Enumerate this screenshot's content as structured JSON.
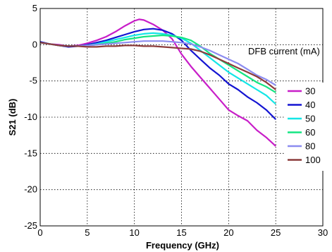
{
  "chart_data": {
    "type": "line",
    "title": "",
    "xlabel": "Frequency (GHz)",
    "ylabel": "S21 (dB)",
    "xlim": [
      0,
      30
    ],
    "ylim": [
      -25,
      5
    ],
    "xticks": [
      0,
      5,
      10,
      15,
      20,
      25,
      30
    ],
    "yticks": [
      -25,
      -20,
      -15,
      -10,
      -5,
      0,
      5
    ],
    "grid": true,
    "legend_title": "DFB current (mA)",
    "legend_position": "right",
    "series": [
      {
        "name": "30",
        "color": "#c81ec8",
        "x": [
          0,
          1,
          2,
          3,
          4,
          5,
          6,
          7,
          8,
          9,
          10,
          10.5,
          11,
          12,
          13,
          14,
          15,
          16,
          17,
          18,
          19,
          20,
          21,
          22,
          23,
          24,
          25
        ],
        "y": [
          0.3,
          0.1,
          0,
          -0.2,
          -0.1,
          0.2,
          0.6,
          1.1,
          1.8,
          2.6,
          3.3,
          3.5,
          3.4,
          2.8,
          2.0,
          0.8,
          -1.3,
          -3.0,
          -4.5,
          -6.0,
          -7.5,
          -9.0,
          -9.8,
          -10.5,
          -11.8,
          -12.8,
          -14.0
        ]
      },
      {
        "name": "40",
        "color": "#1414d2",
        "x": [
          0,
          1,
          2,
          3,
          4,
          5,
          6,
          7,
          8,
          9,
          10,
          11,
          12,
          13,
          14,
          15,
          16,
          17,
          18,
          19,
          20,
          21,
          22,
          23,
          24,
          25
        ],
        "y": [
          0.4,
          0.1,
          -0.1,
          -0.3,
          -0.2,
          0.0,
          0.3,
          0.6,
          1.0,
          1.4,
          1.8,
          2.1,
          2.2,
          2.0,
          1.5,
          0.6,
          -0.8,
          -2.0,
          -3.2,
          -4.2,
          -5.4,
          -6.2,
          -7.2,
          -8.0,
          -9.0,
          -10.3
        ]
      },
      {
        "name": "50",
        "color": "#14e6e6",
        "x": [
          0,
          1,
          2,
          3,
          4,
          5,
          6,
          7,
          8,
          9,
          10,
          11,
          12,
          13,
          14,
          15,
          16,
          17,
          18,
          19,
          20,
          21,
          22,
          23,
          24,
          25
        ],
        "y": [
          0.3,
          0.1,
          -0.1,
          -0.2,
          -0.2,
          -0.1,
          0.1,
          0.4,
          0.7,
          1.0,
          1.3,
          1.5,
          1.6,
          1.5,
          1.3,
          0.9,
          0.2,
          -0.8,
          -1.8,
          -2.8,
          -3.8,
          -4.6,
          -5.4,
          -6.2,
          -7.0,
          -8.2
        ]
      },
      {
        "name": "60",
        "color": "#14e682",
        "x": [
          0,
          1,
          2,
          3,
          4,
          5,
          6,
          7,
          8,
          9,
          10,
          11,
          12,
          13,
          14,
          15,
          16,
          17,
          18,
          19,
          20,
          21,
          22,
          23,
          24,
          25
        ],
        "y": [
          0.3,
          0.1,
          -0.1,
          -0.2,
          -0.2,
          -0.1,
          0.0,
          0.2,
          0.4,
          0.7,
          0.9,
          1.1,
          1.2,
          1.3,
          1.2,
          1.0,
          0.6,
          -0.2,
          -1.2,
          -2.0,
          -2.8,
          -3.6,
          -4.4,
          -5.2,
          -5.8,
          -6.6
        ]
      },
      {
        "name": "80",
        "color": "#8c8cf0",
        "x": [
          0,
          1,
          2,
          3,
          4,
          5,
          6,
          7,
          8,
          9,
          10,
          11,
          12,
          13,
          14,
          15,
          16,
          17,
          18,
          19,
          20,
          21,
          22,
          23,
          24,
          25
        ],
        "y": [
          0.3,
          0.1,
          -0.1,
          -0.2,
          -0.2,
          -0.1,
          0.0,
          0.1,
          0.2,
          0.3,
          0.4,
          0.5,
          0.5,
          0.5,
          0.4,
          0.3,
          0.1,
          -0.3,
          -0.8,
          -1.4,
          -2.0,
          -2.6,
          -3.4,
          -4.2,
          -4.8,
          -5.6
        ]
      },
      {
        "name": "100",
        "color": "#8c3c3c",
        "x": [
          0,
          1,
          2,
          3,
          4,
          5,
          6,
          7,
          8,
          9,
          10,
          11,
          12,
          13,
          14,
          15,
          16,
          17,
          18,
          19,
          20,
          21,
          22,
          23,
          24,
          25
        ],
        "y": [
          0.3,
          0.1,
          -0.1,
          -0.2,
          -0.2,
          -0.3,
          -0.3,
          -0.2,
          -0.2,
          -0.1,
          -0.1,
          -0.2,
          -0.2,
          -0.3,
          -0.4,
          -0.5,
          -0.6,
          -0.9,
          -1.4,
          -2.0,
          -2.6,
          -3.2,
          -3.8,
          -4.4,
          -5.2,
          -6.2
        ]
      }
    ]
  }
}
